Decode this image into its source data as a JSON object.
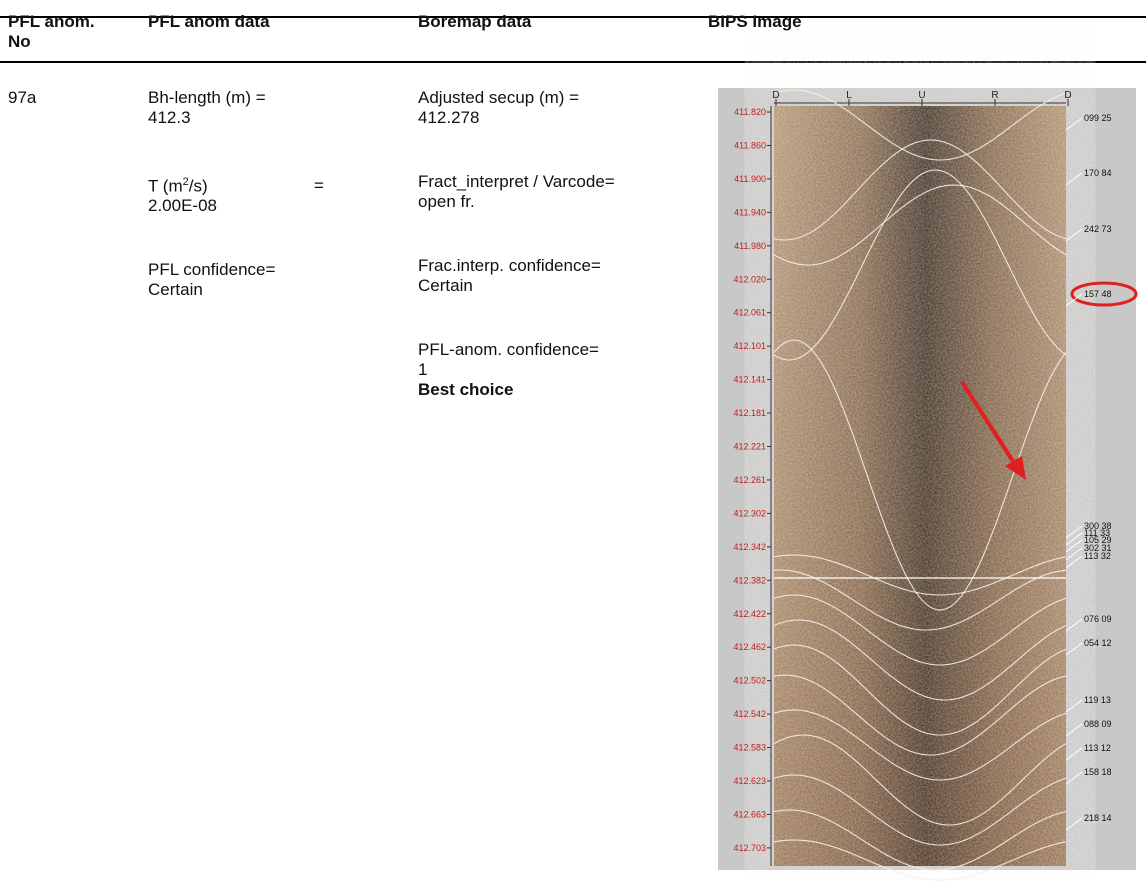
{
  "header": {
    "columns": [
      [
        "PFL anom.",
        "No"
      ],
      [
        "PFL anom data"
      ],
      [
        "Boremap data"
      ],
      [
        "BIPS Image"
      ]
    ]
  },
  "row": {
    "anomaly_no": "97a",
    "pfl_anom_data": {
      "bh_length_label": "Bh-length (m) =",
      "bh_length_value": "412.3",
      "t_label_pre": "T (m",
      "t_label_sup": "2",
      "t_label_post": "/s)",
      "t_equals": "=",
      "t_value": "2.00E-08",
      "confidence_label": "PFL confidence=",
      "confidence_value": "Certain"
    },
    "boremap_data": {
      "secup_label": "Adjusted secup (m) =",
      "secup_value": "412.278",
      "fract_label": "Fract_interpret / Varcode=",
      "fract_value": "open fr.",
      "frac_conf_label": "Frac.interp. confidence=",
      "frac_conf_value": "Certain",
      "pfl_conf_label": "PFL-anom. confidence=",
      "pfl_conf_value": "1",
      "best": "Best choice"
    },
    "bips_image": {
      "top_labels": [
        "D",
        "L",
        "U",
        "R",
        "D"
      ],
      "depth_labels": [
        "411.820",
        "411.860",
        "411.900",
        "411.940",
        "411.980",
        "412.020",
        "412.061",
        "412.101",
        "412.141",
        "412.181",
        "412.221",
        "412.261",
        "412.302",
        "412.342",
        "412.382",
        "412.422",
        "412.462",
        "412.502",
        "412.542",
        "412.583",
        "412.623",
        "412.663",
        "412.703"
      ],
      "orientation_labels": [
        "099 25",
        "170 84",
        "242 73",
        "157 48",
        "300 38",
        "111 33",
        "105 29",
        "302 31",
        "113 32",
        "076 09",
        "054 12",
        "119 13",
        "088 09",
        "113 12",
        "158 18",
        "218 14"
      ]
    }
  }
}
